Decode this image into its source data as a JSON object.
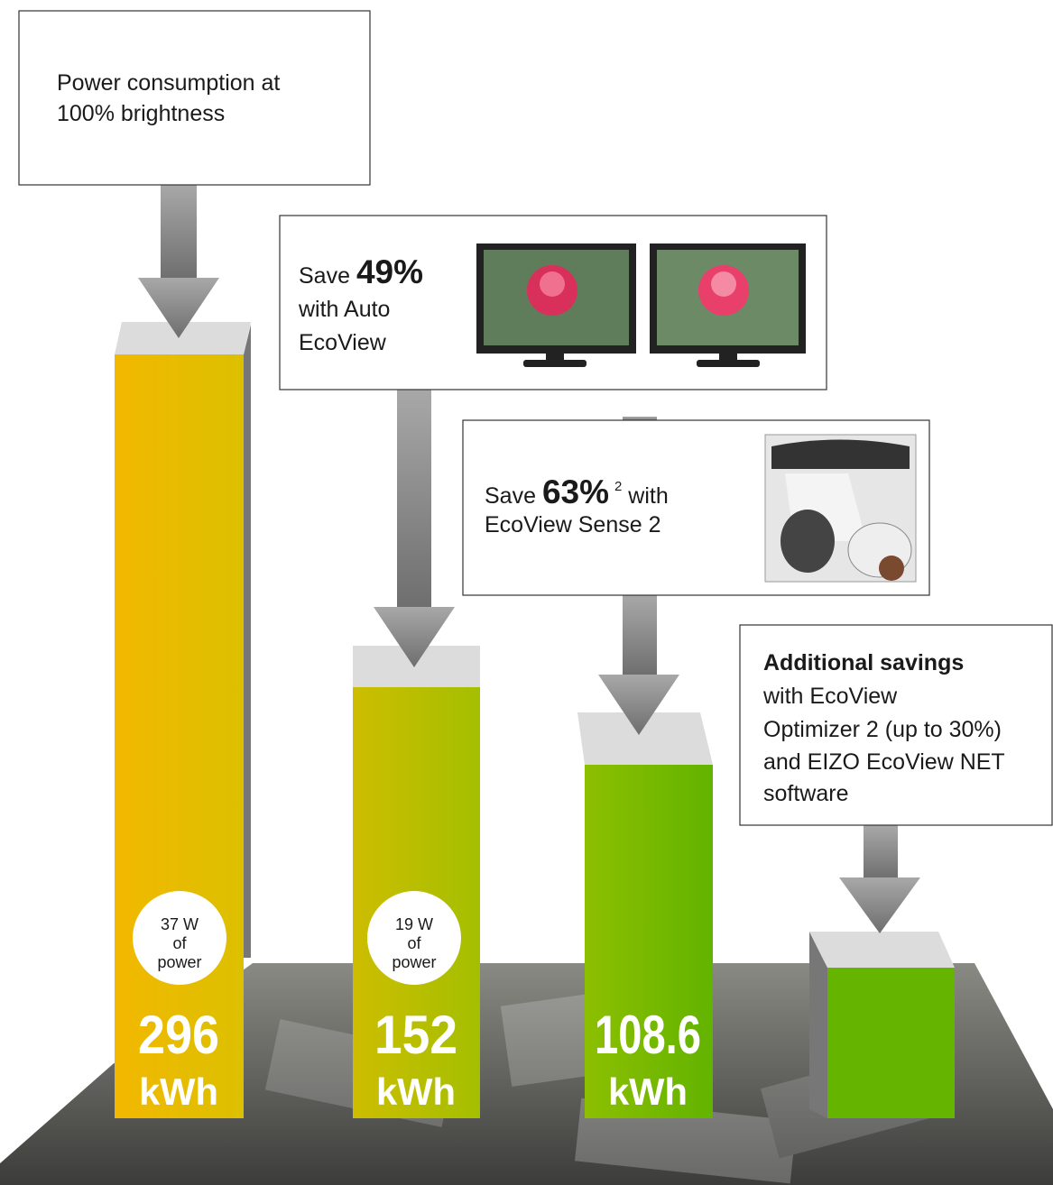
{
  "boxes": [
    {
      "lines": [
        "Power consumption at",
        "100% brightness"
      ]
    },
    {
      "prefix": "Save",
      "highlight": "49%",
      "lines": [
        "with Auto",
        "EcoView"
      ]
    },
    {
      "prefix": "Save",
      "highlight": "63%",
      "footnote": "2",
      "suffix": "with",
      "lines": [
        "EcoView Sense 2"
      ]
    },
    {
      "heading": "Additional savings",
      "lines": [
        "with EcoView",
        "Optimizer 2 (up to 30%)",
        "and EIZO EcoView NET",
        "software"
      ]
    }
  ],
  "bars": [
    {
      "power": [
        "37 W",
        "of",
        "power"
      ],
      "value": 296,
      "unit": "kWh"
    },
    {
      "power": [
        "19 W",
        "of",
        "power"
      ],
      "value": 152,
      "unit": "kWh"
    },
    {
      "value": 108.6,
      "unit": "kWh"
    }
  ]
}
